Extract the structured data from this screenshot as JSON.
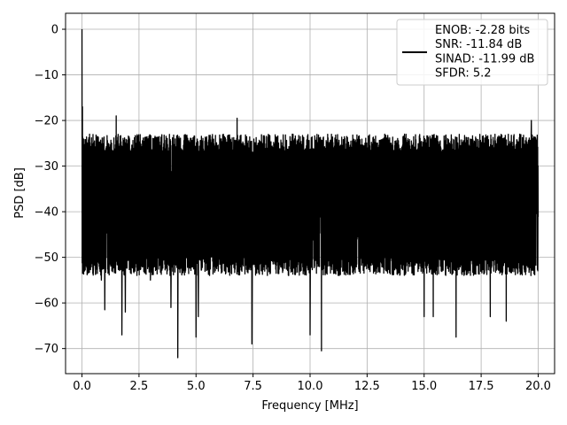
{
  "chart_data": {
    "type": "line",
    "xlabel": "Frequency [MHz]",
    "ylabel": "PSD [dB]",
    "xlim": [
      -0.72,
      20.72
    ],
    "ylim": [
      -75.5,
      3.5
    ],
    "xticks": [
      0.0,
      2.5,
      5.0,
      7.5,
      10.0,
      12.5,
      15.0,
      17.5,
      20.0
    ],
    "xtick_labels": [
      "0.0",
      "2.5",
      "5.0",
      "7.5",
      "10.0",
      "12.5",
      "15.0",
      "17.5",
      "20.0"
    ],
    "yticks": [
      0,
      -10,
      -20,
      -30,
      -40,
      -50,
      -60,
      -70
    ],
    "ytick_labels": [
      "0",
      "−10",
      "−20",
      "−30",
      "−40",
      "−50",
      "−60",
      "−70"
    ],
    "grid": true,
    "legend_position": "top-right",
    "series": [
      {
        "name": "ENOB: -2.28 bits\nSNR: -11.84 dB\nSINAD: -11.99 dB\nSFDR: 5.2",
        "color": "#000000",
        "x_range": [
          0.0,
          20.0
        ],
        "peak": {
          "x": 0.0,
          "y": 0.0
        },
        "noise_floor_top": -25,
        "noise_floor_bottom": -50,
        "notable_points": [
          {
            "x": 0.02,
            "y": -17
          },
          {
            "x": 0.05,
            "y": -38
          },
          {
            "x": 0.1,
            "y": -30
          },
          {
            "x": 0.5,
            "y": -53
          },
          {
            "x": 0.85,
            "y": -55
          },
          {
            "x": 1.0,
            "y": -61.5
          },
          {
            "x": 1.5,
            "y": -19
          },
          {
            "x": 1.75,
            "y": -67
          },
          {
            "x": 1.9,
            "y": -62
          },
          {
            "x": 3.0,
            "y": -55
          },
          {
            "x": 3.9,
            "y": -61
          },
          {
            "x": 4.2,
            "y": -72
          },
          {
            "x": 5.0,
            "y": -67.5
          },
          {
            "x": 5.1,
            "y": -63
          },
          {
            "x": 6.8,
            "y": -19.5
          },
          {
            "x": 7.45,
            "y": -69
          },
          {
            "x": 10.0,
            "y": -67
          },
          {
            "x": 10.5,
            "y": -70.5
          },
          {
            "x": 15.0,
            "y": -63
          },
          {
            "x": 15.4,
            "y": -63
          },
          {
            "x": 16.4,
            "y": -67.5
          },
          {
            "x": 17.9,
            "y": -63
          },
          {
            "x": 18.6,
            "y": -64
          },
          {
            "x": 19.7,
            "y": -20
          }
        ]
      }
    ]
  }
}
